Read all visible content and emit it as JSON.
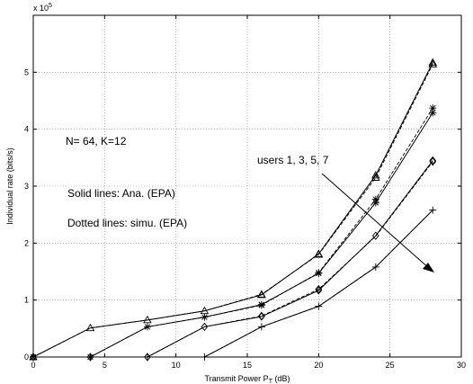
{
  "chart_data": {
    "type": "line",
    "xlabel": "Transmit Power P",
    "xlabel_sub": "T",
    "xlabel_unit": " (dB)",
    "ylabel": "Individual rate (bits/s)",
    "xlim": [
      0,
      30
    ],
    "ylim": [
      0,
      6
    ],
    "x_ticks": [
      0,
      5,
      10,
      15,
      20,
      25,
      30
    ],
    "y_ticks": [
      0,
      1,
      2,
      3,
      4,
      5,
      6
    ],
    "y_scale_label": "x 10",
    "y_scale_exp": "5",
    "grid": "dotted",
    "series": [
      {
        "marker": "triangle",
        "x": [
          0,
          4,
          8,
          12,
          16,
          20,
          24,
          28
        ],
        "ana": [
          0,
          0.51,
          0.65,
          0.81,
          1.09,
          1.81,
          3.19,
          5.17
        ],
        "simu": [
          0,
          0.51,
          0.65,
          0.81,
          1.1,
          1.8,
          3.15,
          5.14
        ]
      },
      {
        "marker": "asterisk",
        "x": [
          0,
          4,
          8,
          12,
          16,
          20,
          24,
          28
        ],
        "ana": [
          0,
          0,
          0.53,
          0.7,
          0.92,
          1.47,
          2.71,
          4.29
        ],
        "simu": [
          0,
          0,
          0.53,
          0.7,
          0.91,
          1.48,
          2.77,
          4.37
        ]
      },
      {
        "marker": "diamond",
        "x": [
          0,
          4,
          8,
          12,
          16,
          20,
          24,
          28
        ],
        "ana": [
          0,
          0,
          0,
          0.53,
          0.71,
          1.17,
          2.13,
          3.45
        ],
        "simu": [
          0,
          0,
          0,
          0.53,
          0.72,
          1.19,
          2.12,
          3.43
        ]
      },
      {
        "marker": "plus",
        "x": [
          0,
          4,
          8,
          12,
          16,
          20,
          24,
          28
        ],
        "ana": [
          0,
          0,
          0,
          0,
          0.53,
          0.89,
          1.58,
          2.58
        ],
        "simu": [
          0,
          0,
          0,
          0,
          0.53,
          0.89,
          1.58,
          2.58
        ]
      }
    ],
    "annotations": {
      "params": "N= 64, K=12",
      "users": "users 1, 3, 5, 7",
      "solid": "Solid lines: Ana. (EPA)",
      "dotted": "Dotted lines: simu. (EPA)"
    }
  }
}
